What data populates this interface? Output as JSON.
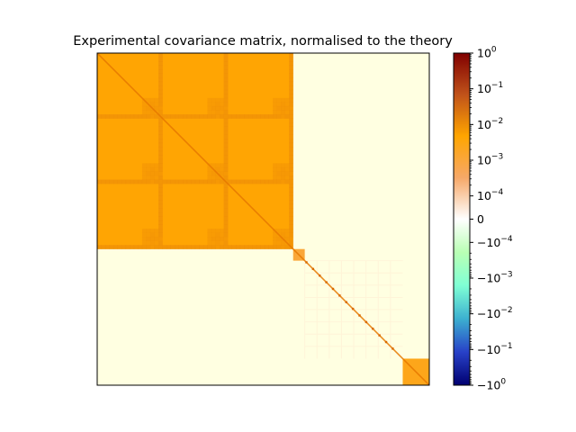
{
  "chart_data": {
    "type": "heatmap",
    "title": "Experimental covariance matrix, normalised to the theory",
    "xlabel": "",
    "ylabel": "",
    "axes_ticks": "none",
    "colorscale": "symmetric log",
    "colorbar": {
      "ticks": [
        {
          "v": 1,
          "base": "10",
          "exp": "0"
        },
        {
          "v": 0.1,
          "base": "10",
          "exp": "−1"
        },
        {
          "v": 0.01,
          "base": "10",
          "exp": "−2"
        },
        {
          "v": 0.001,
          "base": "10",
          "exp": "−3"
        },
        {
          "v": 0.0001,
          "base": "10",
          "exp": "−4"
        },
        {
          "v": 0,
          "base": "0",
          "exp": ""
        },
        {
          "v": -0.0001,
          "base": "−10",
          "exp": "−4"
        },
        {
          "v": -0.001,
          "base": "−10",
          "exp": "−3"
        },
        {
          "v": -0.01,
          "base": "−10",
          "exp": "−2"
        },
        {
          "v": -0.1,
          "base": "−10",
          "exp": "−1"
        },
        {
          "v": -1,
          "base": "−10",
          "exp": "0"
        }
      ],
      "colors": {
        "pos": [
          "#ffffff",
          "#f6a868",
          "#ffa500",
          "#c0521a",
          "#800000"
        ],
        "neg": [
          "#ffffff",
          "#b9ffb4",
          "#7fffd4",
          "#3cb0d0",
          "#2841c8",
          "#000070"
        ]
      }
    },
    "blocks": [
      {
        "name": "large block",
        "from": 0,
        "to": 0.59,
        "level": 0.002
      },
      {
        "name": "small block",
        "from": 0.59,
        "to": 0.625,
        "level": 0.0004
      },
      {
        "name": "sparse block",
        "from": 0.625,
        "to": 0.92,
        "level": 1e-05
      },
      {
        "name": "end block",
        "from": 0.92,
        "to": 1.0,
        "level": 0.001
      }
    ],
    "background_color": "#ffffe1",
    "diagonal_color": "#e67800"
  }
}
